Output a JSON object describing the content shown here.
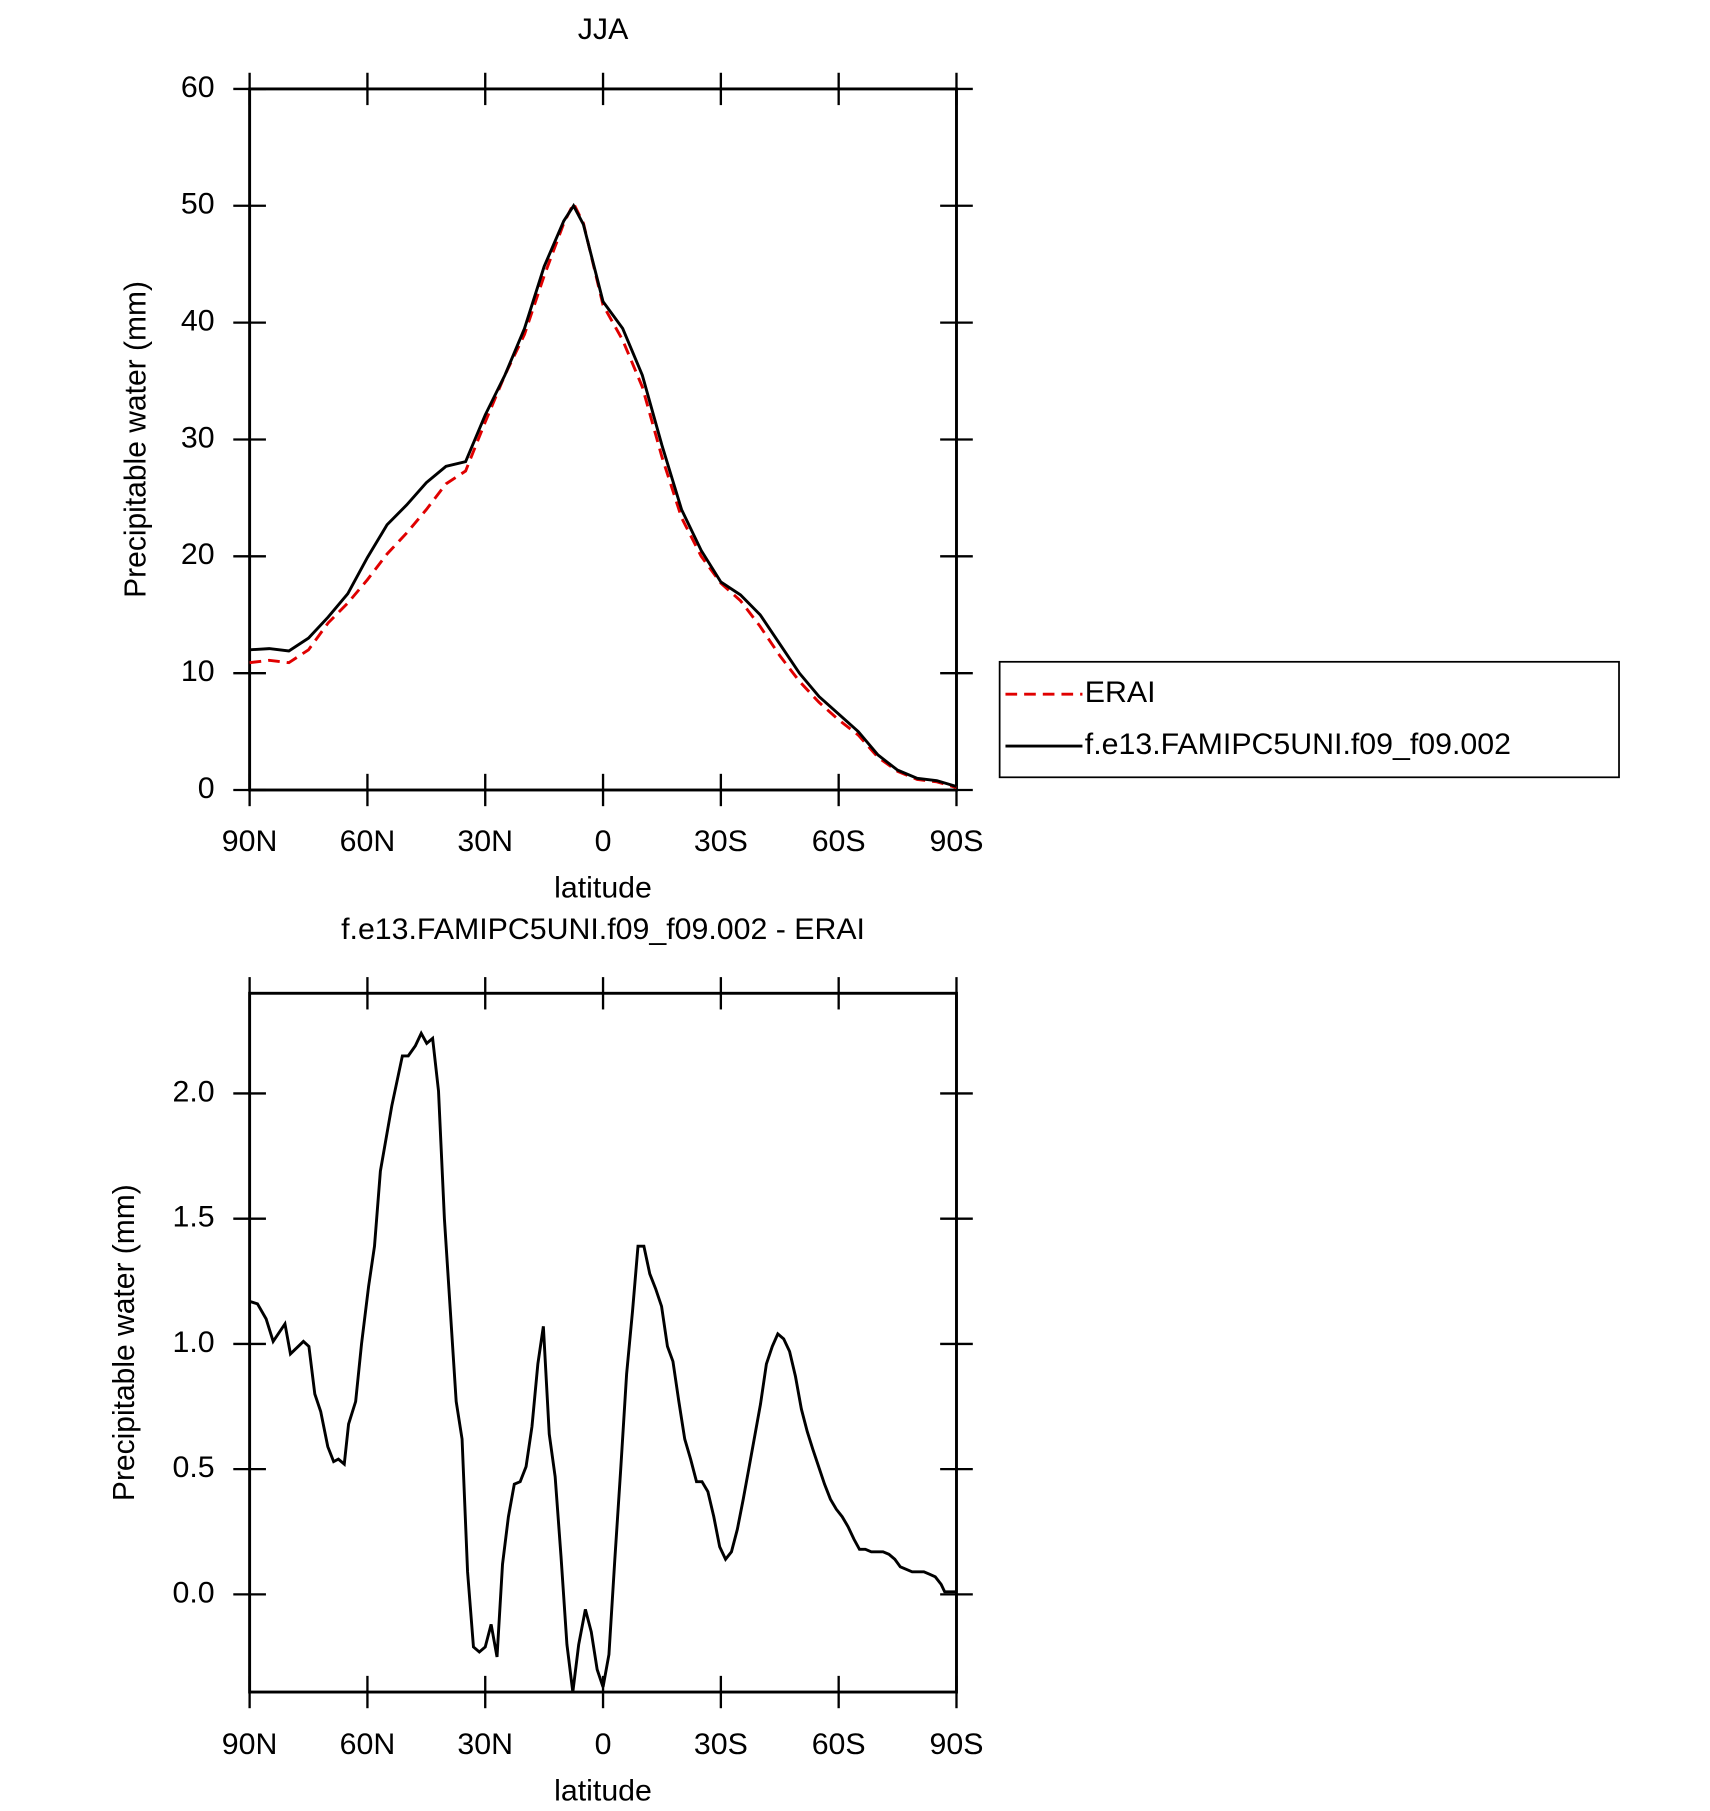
{
  "chart_data": [
    {
      "type": "line",
      "title": "JJA",
      "xlabel": "latitude",
      "ylabel": "Precipitable water (mm)",
      "x": [
        90,
        85,
        80,
        75,
        70,
        65,
        60,
        55,
        50,
        45,
        40,
        35,
        30,
        25,
        20,
        15,
        10,
        7.5,
        5,
        0,
        -5,
        -10,
        -15,
        -20,
        -25,
        -30,
        -35,
        -40,
        -45,
        -50,
        -55,
        -60,
        -65,
        -70,
        -75,
        -80,
        -85,
        -90
      ],
      "series": [
        {
          "name": "ERAI",
          "color": "#e00000",
          "line_style": "dashed",
          "values": [
            10.9,
            11.1,
            10.9,
            12.0,
            14.3,
            16.0,
            18.0,
            20.2,
            22.0,
            24.0,
            26.2,
            27.3,
            31.5,
            35.5,
            39.0,
            44.0,
            48.5,
            50.2,
            48.5,
            41.5,
            38.5,
            34.5,
            28.5,
            23.3,
            20.0,
            17.7,
            16.2,
            14.0,
            11.5,
            9.3,
            7.5,
            6.0,
            4.7,
            2.8,
            1.6,
            0.9,
            0.7,
            0.2
          ]
        },
        {
          "name": "f.e13.FAMIPC5UNI.f09_f09.002",
          "color": "#000000",
          "line_style": "solid",
          "values": [
            12.0,
            12.1,
            11.9,
            13.0,
            14.8,
            16.8,
            19.9,
            22.7,
            24.4,
            26.3,
            27.7,
            28.1,
            32.1,
            35.5,
            39.5,
            44.8,
            48.7,
            50.0,
            48.4,
            41.8,
            39.5,
            35.5,
            29.5,
            24.0,
            20.5,
            17.8,
            16.7,
            15.0,
            12.5,
            10.0,
            8.0,
            6.5,
            5.0,
            3.0,
            1.7,
            1.0,
            0.8,
            0.3
          ]
        }
      ],
      "xlim": [
        90,
        -90
      ],
      "xticks": [
        {
          "value": 90,
          "label": "90N"
        },
        {
          "value": 60,
          "label": "60N"
        },
        {
          "value": 30,
          "label": "30N"
        },
        0,
        {
          "value": -30,
          "label": "30S"
        },
        {
          "value": -60,
          "label": "60S"
        },
        {
          "value": -90,
          "label": "90S"
        }
      ],
      "ylim": [
        0,
        60
      ],
      "yticks": [
        0,
        10,
        20,
        30,
        40,
        50,
        60
      ],
      "legend": "right"
    },
    {
      "type": "line",
      "title": "f.e13.FAMIPC5UNI.f09_f09.002 - ERAI",
      "xlabel": "latitude",
      "ylabel": "Precipitable water (mm)",
      "x": [
        90,
        88,
        85.8,
        84,
        81,
        79.6,
        76.3,
        74.9,
        73.4,
        71.9,
        70.1,
        68.6,
        67.4,
        65.9,
        64.8,
        63,
        61.5,
        59.7,
        58.2,
        56.7,
        53.8,
        51.1,
        49.6,
        47.8,
        46.3,
        44.9,
        43.4,
        41.9,
        40.4,
        37.4,
        35.9,
        34.5,
        33,
        31.5,
        30,
        28.5,
        27,
        25.6,
        24.1,
        22.6,
        21.1,
        19.6,
        18.1,
        16.6,
        15.2,
        13.7,
        12.2,
        10.7,
        9.2,
        7.7,
        6.2,
        4.5,
        3,
        1.5,
        0,
        -1.5,
        -3,
        -4.5,
        -6,
        -7.5,
        -8.9,
        -10.4,
        -11.9,
        -13.4,
        -14.9,
        -16.4,
        -17.8,
        -19.3,
        -20.8,
        -22.3,
        -23.8,
        -25.2,
        -26.7,
        -28.2,
        -29.7,
        -31.2,
        -32.7,
        -34.2,
        -35.7,
        -37.1,
        -38.6,
        -40.1,
        -41.6,
        -43.1,
        -44.5,
        -46,
        -47.5,
        -49,
        -50.5,
        -52,
        -53.4,
        -54.9,
        -56.4,
        -57.9,
        -59.4,
        -60.9,
        -62.4,
        -63.9,
        -65.3,
        -66.8,
        -68.3,
        -69.8,
        -71.3,
        -72.8,
        -74.3,
        -75.7,
        -77.2,
        -78.7,
        -80.2,
        -81.7,
        -83.2,
        -84.6,
        -86.1,
        -87,
        -90
      ],
      "series": [
        {
          "name": "f.e13.FAMIPC5UNI.f09_f09.002 - ERAI",
          "color": "#000000",
          "line_style": "solid",
          "values": [
            1.17,
            1.16,
            1.1,
            1.01,
            1.08,
            0.96,
            1.01,
            0.99,
            0.8,
            0.73,
            0.59,
            0.53,
            0.54,
            0.52,
            0.68,
            0.77,
            1.0,
            1.23,
            1.39,
            1.69,
            1.95,
            2.15,
            2.15,
            2.19,
            2.24,
            2.2,
            2.22,
            2.01,
            1.5,
            0.77,
            0.62,
            0.09,
            -0.21,
            -0.23,
            -0.21,
            -0.12,
            -0.25,
            0.12,
            0.31,
            0.44,
            0.45,
            0.51,
            0.67,
            0.92,
            1.07,
            0.64,
            0.47,
            0.15,
            -0.2,
            -0.39,
            -0.2,
            -0.06,
            -0.15,
            -0.3,
            -0.37,
            -0.24,
            0.14,
            0.5,
            0.88,
            1.13,
            1.39,
            1.39,
            1.28,
            1.22,
            1.15,
            0.99,
            0.93,
            0.77,
            0.62,
            0.54,
            0.45,
            0.45,
            0.41,
            0.31,
            0.19,
            0.14,
            0.17,
            0.26,
            0.38,
            0.5,
            0.63,
            0.76,
            0.92,
            0.99,
            1.04,
            1.02,
            0.97,
            0.87,
            0.74,
            0.65,
            0.58,
            0.51,
            0.44,
            0.38,
            0.34,
            0.31,
            0.27,
            0.22,
            0.18,
            0.18,
            0.17,
            0.17,
            0.17,
            0.16,
            0.14,
            0.11,
            0.1,
            0.09,
            0.09,
            0.09,
            0.08,
            0.07,
            0.04,
            0.01,
            0.01
          ]
        }
      ],
      "xlim": [
        90,
        -90
      ],
      "xticks": [
        {
          "value": 90,
          "label": "90N"
        },
        {
          "value": 60,
          "label": "60N"
        },
        {
          "value": 30,
          "label": "30N"
        },
        0,
        {
          "value": -30,
          "label": "30S"
        },
        {
          "value": -60,
          "label": "60S"
        },
        {
          "value": -90,
          "label": "90S"
        }
      ],
      "ylim": [
        -0.39,
        2.4
      ],
      "yticks": [
        {
          "value": 0,
          "label": "0.0"
        },
        0.5,
        {
          "value": 1,
          "label": "1.0"
        },
        1.5,
        {
          "value": 2,
          "label": "2.0"
        }
      ]
    }
  ]
}
